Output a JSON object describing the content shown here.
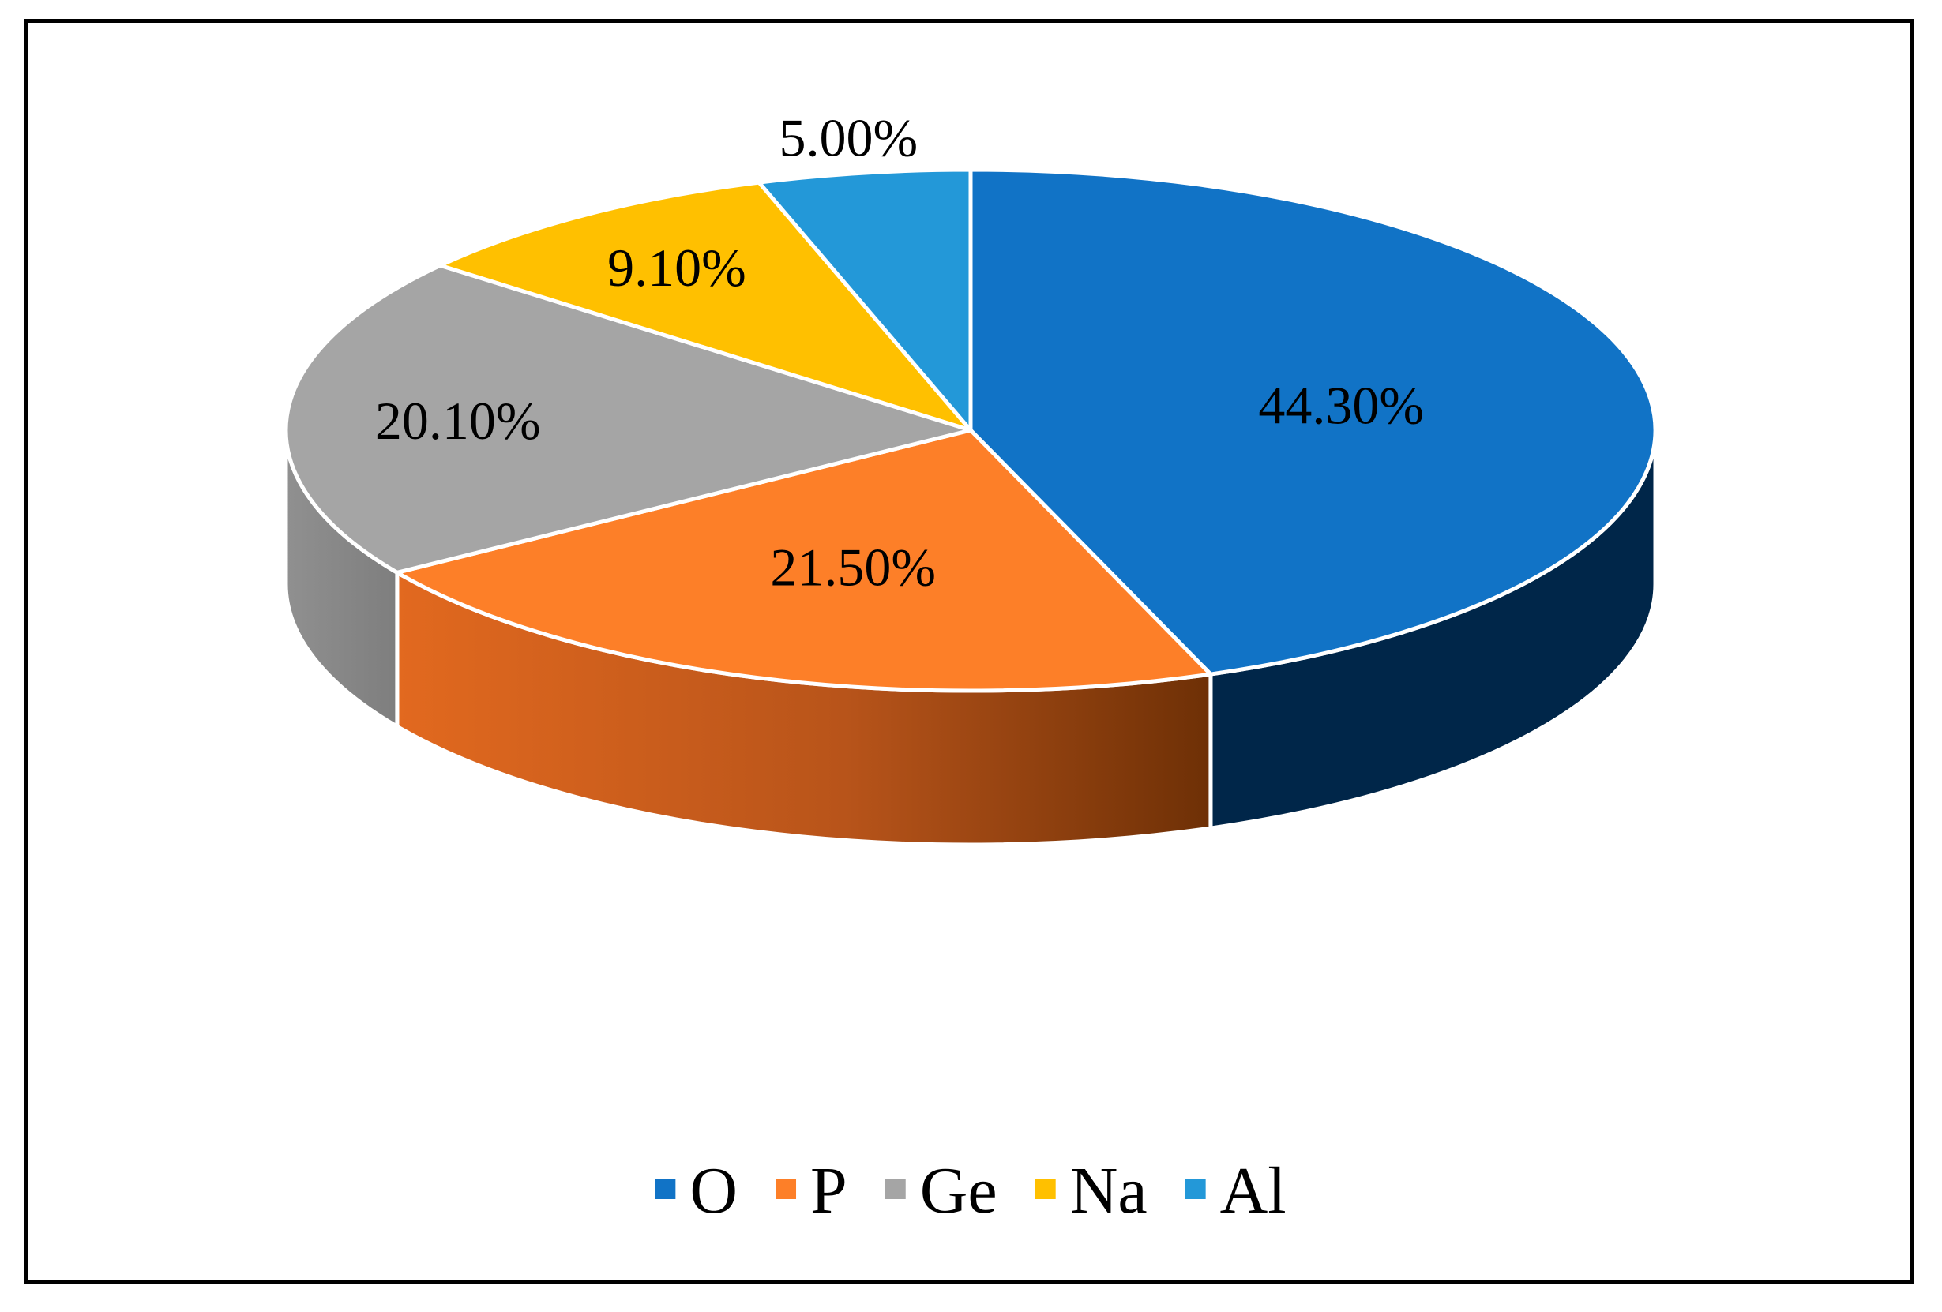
{
  "chart_data": {
    "type": "pie",
    "style": "3d",
    "legend_position": "bottom",
    "slices": [
      {
        "name": "O",
        "value": 44.3,
        "label": "44.30%",
        "color": "#1173C6",
        "side_color": "#002649"
      },
      {
        "name": "P",
        "value": 21.5,
        "label": "21.50%",
        "color": "#FD7F28",
        "side_color": "#C2571A"
      },
      {
        "name": "Ge",
        "value": 20.1,
        "label": "20.10%",
        "color": "#A5A5A5",
        "side_color": "#8A8A8A"
      },
      {
        "name": "Na",
        "value": 9.1,
        "label": "9.10%",
        "color": "#FFC000",
        "side_color": "#C99400"
      },
      {
        "name": "Al",
        "value": 5.0,
        "label": "5.00%",
        "color": "#2398D8",
        "side_color": "#1A6FA0"
      }
    ]
  }
}
